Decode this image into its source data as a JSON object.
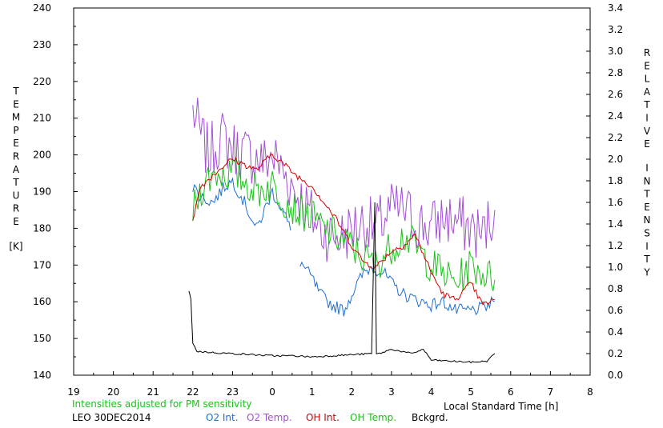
{
  "chart_data": {
    "type": "line",
    "title": "",
    "left_axis": {
      "label_letters": [
        "T",
        "E",
        "M",
        "P",
        "E",
        "R",
        "A",
        "T",
        "U",
        "R",
        "E"
      ],
      "unit": "[K]",
      "ylim": [
        140,
        240
      ],
      "ticks": [
        "140",
        "150",
        "160",
        "170",
        "180",
        "190",
        "200",
        "210",
        "220",
        "230",
        "240"
      ]
    },
    "right_axis": {
      "label_letters_1": [
        "R",
        "E",
        "L",
        "A",
        "T",
        "I",
        "V",
        "E"
      ],
      "label_letters_2": [
        "I",
        "N",
        "T",
        "E",
        "N",
        "S",
        "I",
        "T",
        "Y"
      ],
      "ylim": [
        0.0,
        3.4
      ],
      "ticks": [
        "0.0",
        "0.2",
        "0.4",
        "0.6",
        "0.8",
        "1.0",
        "1.2",
        "1.4",
        "1.6",
        "1.8",
        "2.0",
        "2.2",
        "2.4",
        "2.6",
        "2.8",
        "3.0",
        "3.2",
        "3.4"
      ]
    },
    "x_axis": {
      "label": "Local Standard Time [h]",
      "ticks": [
        "19",
        "20",
        "21",
        "22",
        "23",
        "0",
        "1",
        "2",
        "3",
        "4",
        "5",
        "6",
        "7",
        "8"
      ],
      "xlim": [
        19,
        32
      ]
    },
    "note": "Intensities adjusted for PM sensitivity",
    "station_label": "LEO 30DEC2014",
    "series": [
      {
        "name": "O2 Int.",
        "color": "#1f6fd0",
        "axis": "right",
        "noise": 0.06,
        "x": [
          22.0,
          22.2,
          22.5,
          22.8,
          23.0,
          23.3,
          23.6,
          24.0,
          24.3,
          24.5,
          24.6,
          24.7,
          25.0,
          25.2,
          25.5,
          25.8,
          26.0,
          26.3,
          26.5,
          26.8,
          27.0,
          27.3,
          27.6,
          28.0,
          28.3,
          28.6,
          29.0,
          29.3,
          29.6
        ],
        "y": [
          1.75,
          1.65,
          1.6,
          1.75,
          1.8,
          1.6,
          1.35,
          1.7,
          1.5,
          1.3,
          null,
          1.05,
          0.9,
          0.75,
          0.65,
          0.6,
          0.75,
          0.95,
          1.0,
          0.95,
          0.85,
          0.75,
          0.7,
          0.65,
          0.68,
          0.6,
          0.6,
          0.62,
          0.68
        ]
      },
      {
        "name": "O2 Temp.",
        "color": "#a24fd6",
        "axis": "left",
        "noise": 8,
        "x": [
          22.0,
          22.2,
          22.4,
          22.7,
          23.0,
          23.4,
          23.8,
          24.0,
          24.3,
          24.6,
          24.9,
          25.2,
          25.5,
          25.8,
          26.0,
          26.3,
          26.6,
          27.0,
          27.3,
          27.6,
          28.0,
          28.3,
          28.6,
          29.0,
          29.3,
          29.6
        ],
        "y": [
          212,
          205,
          200,
          205,
          202,
          200,
          198,
          200,
          195,
          190,
          185,
          180,
          178,
          178,
          180,
          182,
          180,
          185,
          185,
          182,
          180,
          183,
          182,
          180,
          178,
          185
        ]
      },
      {
        "name": "OH Int.",
        "color": "#d40000",
        "axis": "right",
        "noise": 0.03,
        "x": [
          22.0,
          22.2,
          22.5,
          22.8,
          23.0,
          23.3,
          23.6,
          24.0,
          24.3,
          24.6,
          25.0,
          25.3,
          25.6,
          26.0,
          26.3,
          26.6,
          27.0,
          27.3,
          27.6,
          28.0,
          28.3,
          28.6,
          29.0,
          29.3,
          29.6
        ],
        "y": [
          1.45,
          1.75,
          1.85,
          1.95,
          2.0,
          1.95,
          1.9,
          2.05,
          1.95,
          1.85,
          1.75,
          1.6,
          1.45,
          1.2,
          1.05,
          1.0,
          1.15,
          1.2,
          1.3,
          0.95,
          0.75,
          0.7,
          0.85,
          0.65,
          0.7
        ]
      },
      {
        "name": "OH Temp.",
        "color": "#19c219",
        "axis": "left",
        "noise": 5,
        "x": [
          22.0,
          22.3,
          22.6,
          23.0,
          23.3,
          23.6,
          24.0,
          24.3,
          24.6,
          25.0,
          25.3,
          25.6,
          26.0,
          26.3,
          26.6,
          27.0,
          27.3,
          27.6,
          28.0,
          28.3,
          28.6,
          29.0,
          29.3,
          29.6
        ],
        "y": [
          185,
          193,
          195,
          195,
          193,
          190,
          192,
          188,
          185,
          183,
          180,
          178,
          175,
          172,
          170,
          175,
          178,
          175,
          170,
          168,
          165,
          170,
          168,
          166
        ]
      },
      {
        "name": "Bckgrd.",
        "color": "#000000",
        "axis": "right",
        "noise": 0.008,
        "x": [
          21.9,
          21.95,
          22.0,
          22.1,
          22.5,
          23.0,
          23.5,
          24.0,
          24.5,
          25.0,
          25.5,
          26.0,
          26.5,
          26.58,
          26.62,
          26.7,
          27.0,
          27.5,
          27.8,
          28.0,
          28.5,
          29.0,
          29.4,
          29.6
        ],
        "y": [
          0.78,
          0.7,
          0.3,
          0.22,
          0.21,
          0.2,
          0.19,
          0.18,
          0.18,
          0.17,
          0.18,
          0.19,
          0.2,
          1.6,
          0.2,
          0.2,
          0.24,
          0.2,
          0.24,
          0.14,
          0.13,
          0.12,
          0.13,
          0.2
        ]
      }
    ]
  }
}
